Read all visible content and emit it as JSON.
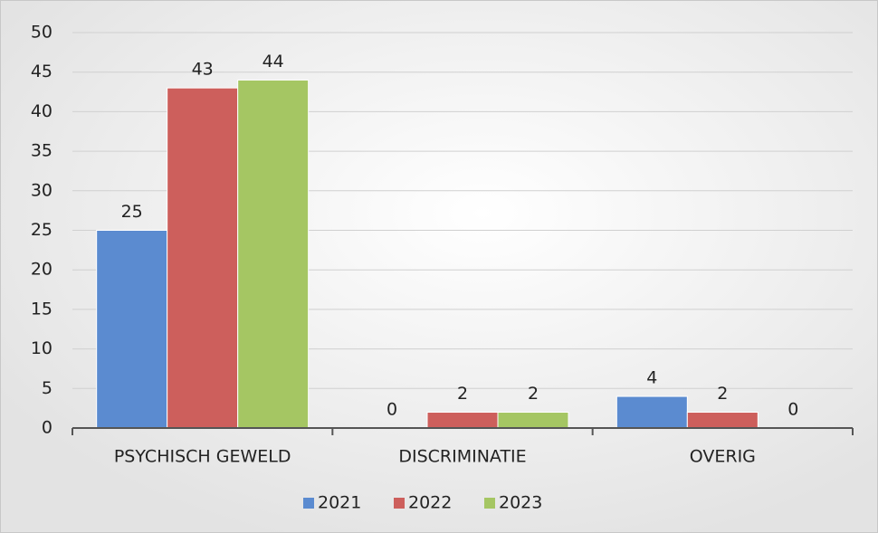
{
  "chart_data": {
    "type": "bar",
    "categories": [
      "PSYCHISCH GEWELD",
      "DISCRIMINATIE",
      "OVERIG"
    ],
    "series": [
      {
        "name": "2021",
        "color": "#5b8bd0",
        "values": [
          25,
          0,
          4
        ]
      },
      {
        "name": "2022",
        "color": "#cd5f5c",
        "values": [
          43,
          2,
          2
        ]
      },
      {
        "name": "2023",
        "color": "#a5c663",
        "values": [
          44,
          2,
          0
        ]
      }
    ],
    "ylim": [
      0,
      50
    ],
    "yticks": [
      0,
      5,
      10,
      15,
      20,
      25,
      30,
      35,
      40,
      45,
      50
    ],
    "grid": true,
    "legend": "bottom"
  }
}
